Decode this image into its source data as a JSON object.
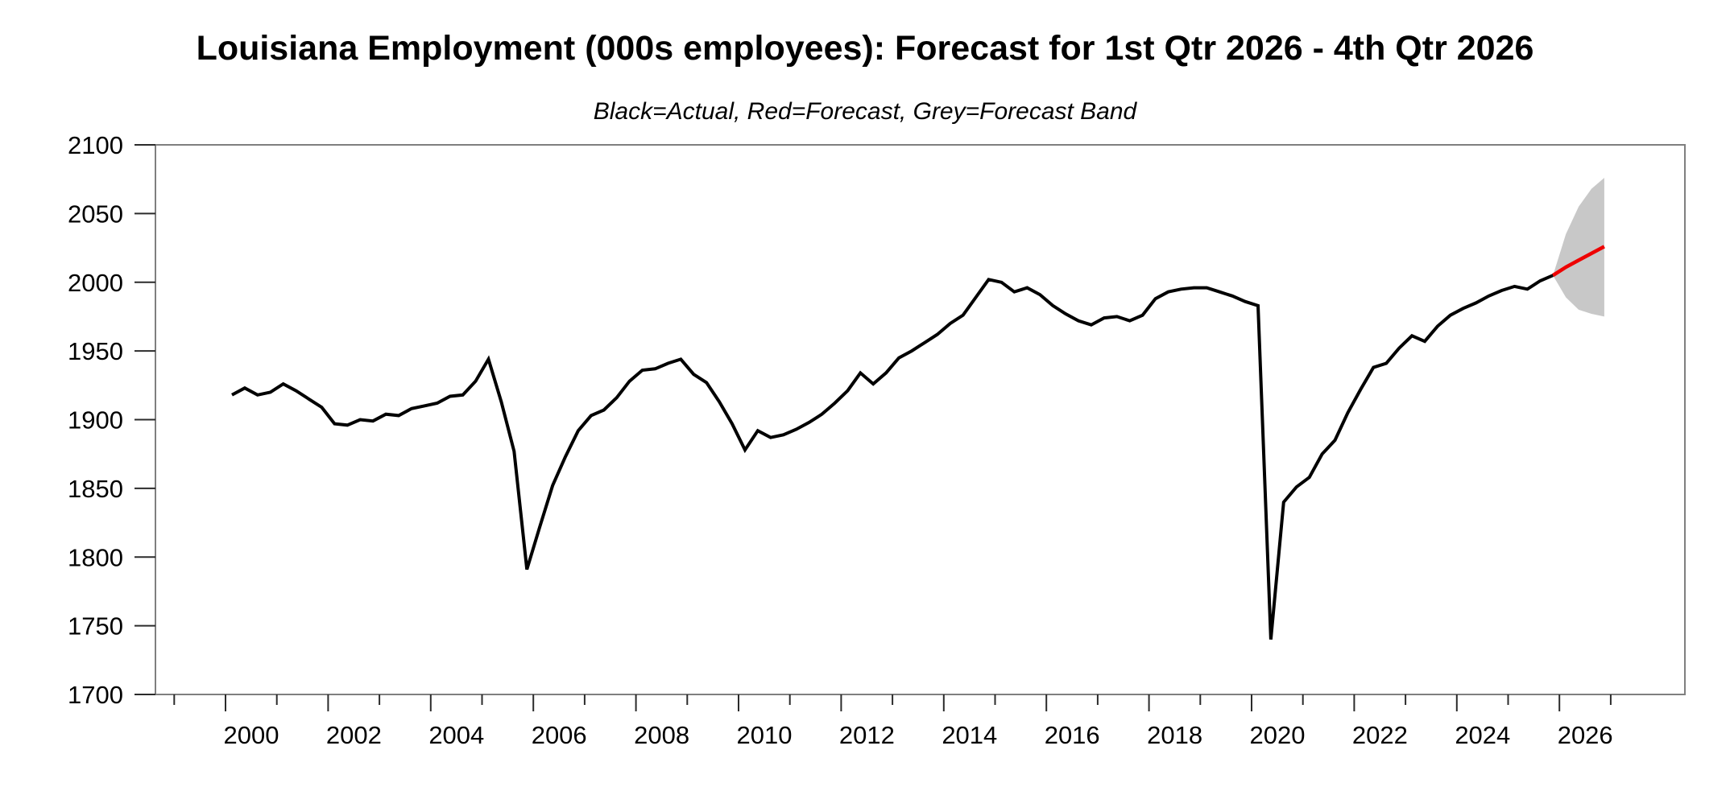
{
  "chart_data": {
    "type": "line",
    "title": "Louisiana Employment (000s employees): Forecast for 1st Qtr 2026 - 4th Qtr 2026",
    "subtitle": "Black=Actual, Red=Forecast, Grey=Forecast Band",
    "ylabel": "",
    "xlabel": "",
    "ylim": [
      1700,
      2100
    ],
    "xlim_years": [
      1998.6,
      2028.4
    ],
    "grid": false,
    "legend_position": "none",
    "y_ticks": [
      2100,
      2050,
      2000,
      1950,
      1900,
      1850,
      1800,
      1750,
      1700
    ],
    "x_ticks_major": [
      2000,
      2002,
      2004,
      2006,
      2008,
      2010,
      2012,
      2014,
      2016,
      2018,
      2020,
      2022,
      2024,
      2026
    ],
    "x_ticks_minor": [
      1999,
      2001,
      2003,
      2005,
      2007,
      2009,
      2011,
      2013,
      2015,
      2017,
      2019,
      2021,
      2023,
      2025,
      2027
    ],
    "colors": {
      "actual": "#000000",
      "forecast": "#ee0000",
      "band": "#c8c8c8",
      "spine": "#7f7f7f",
      "tick": "#2b2b2b",
      "text": "#000000",
      "background": "#ffffff"
    },
    "frequency": "quarterly",
    "series": [
      {
        "name": "Actual",
        "role": "actual",
        "start_year": 2000,
        "start_quarter": 1,
        "values": [
          1918,
          1923,
          1918,
          1920,
          1926,
          1921,
          1915,
          1909,
          1897,
          1896,
          1900,
          1899,
          1904,
          1903,
          1908,
          1910,
          1912,
          1917,
          1918,
          1928,
          1944,
          1913,
          1877,
          1791,
          1822,
          1852,
          1873,
          1892,
          1903,
          1907,
          1916,
          1928,
          1936,
          1937,
          1941,
          1944,
          1933,
          1927,
          1913,
          1897,
          1878,
          1892,
          1887,
          1889,
          1893,
          1898,
          1904,
          1912,
          1921,
          1934,
          1926,
          1934,
          1945,
          1950,
          1956,
          1962,
          1970,
          1976,
          1989,
          2002,
          2000,
          1993,
          1996,
          1991,
          1983,
          1977,
          1972,
          1969,
          1974,
          1975,
          1972,
          1976,
          1988,
          1993,
          1995,
          1996,
          1996,
          1993,
          1990,
          1986,
          1983,
          1740,
          1840,
          1851,
          1858,
          1875,
          1885,
          1905,
          1922,
          1938,
          1941,
          1952,
          1961,
          1957,
          1968,
          1976,
          1981,
          1985,
          1990,
          1994,
          1997,
          1995,
          2001,
          2005
        ]
      },
      {
        "name": "Forecast",
        "role": "forecast",
        "start_year": 2025,
        "start_quarter": 4,
        "values": [
          2005,
          2011,
          2016,
          2021,
          2026
        ]
      },
      {
        "name": "Forecast band upper",
        "role": "band_upper",
        "start_year": 2025,
        "start_quarter": 4,
        "values": [
          2005,
          2035,
          2055,
          2068,
          2076
        ]
      },
      {
        "name": "Forecast band lower",
        "role": "band_lower",
        "start_year": 2025,
        "start_quarter": 4,
        "values": [
          2005,
          1989,
          1980,
          1977,
          1975
        ]
      }
    ]
  }
}
